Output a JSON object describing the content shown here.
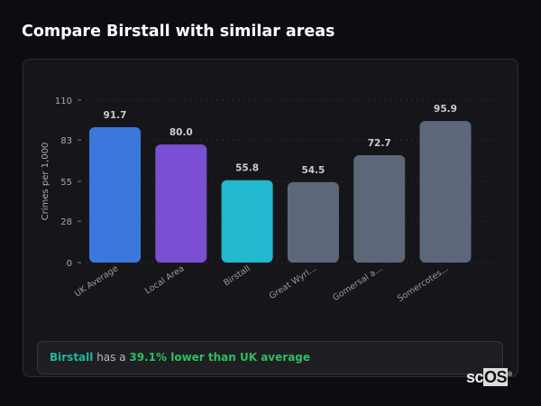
{
  "title": "Compare Birstall with similar areas",
  "chart_data": {
    "type": "bar",
    "title": "",
    "xlabel": "",
    "ylabel": "Crimes per 1,000",
    "ylim": [
      0,
      110
    ],
    "yticks": [
      0,
      28,
      55,
      83,
      110
    ],
    "grid": true,
    "categories": [
      "UK Average",
      "Local Area",
      "Birstall",
      "Great Wyrl...",
      "Gomersal a...",
      "Somercotes..."
    ],
    "values": [
      91.7,
      80.0,
      55.8,
      54.5,
      72.7,
      95.9
    ],
    "value_labels": [
      "91.7",
      "80.0",
      "55.8",
      "54.5",
      "72.7",
      "95.9"
    ],
    "colors": [
      "#3b78dc",
      "#7b4fd4",
      "#22b8cf",
      "#5c677a",
      "#5c677a",
      "#5c677a"
    ]
  },
  "summary": {
    "place": "Birstall",
    "middle": " has a ",
    "highlight": "39.1% lower than UK average"
  },
  "logo": {
    "text_sc": "sc",
    "text_os": "OS",
    "mark": "®"
  }
}
